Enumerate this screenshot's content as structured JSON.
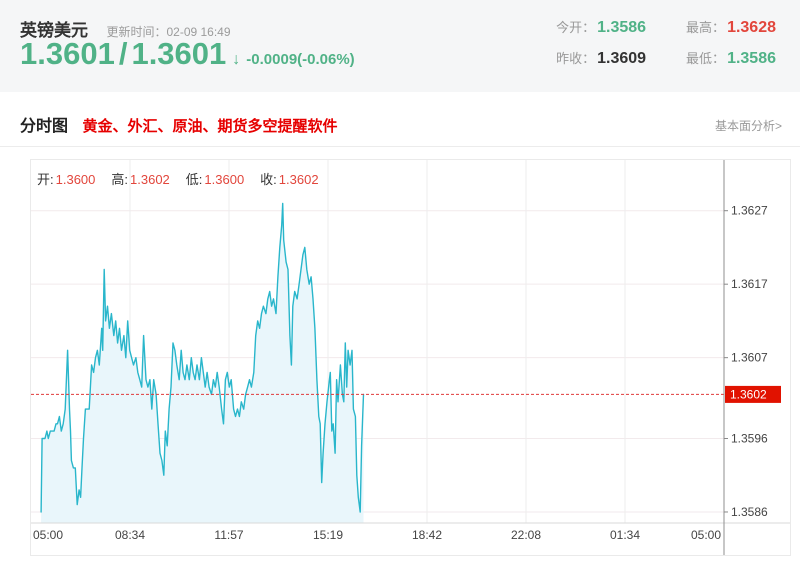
{
  "header": {
    "symbol": "英镑美元",
    "update_label": "更新时间：",
    "update_time": "02-09 16:49",
    "bid": "1.3601",
    "separator": "/",
    "ask": "1.3601",
    "arrow": "↓",
    "change": "-0.0009(-0.06%)",
    "stats": [
      {
        "label": "今开：",
        "value": "1.3586",
        "color": "#50b287"
      },
      {
        "label": "最高：",
        "value": "1.3628",
        "color": "#e2463c"
      },
      {
        "label": "昨收：",
        "value": "1.3609",
        "color": "#333333"
      },
      {
        "label": "最低：",
        "value": "1.3586",
        "color": "#50b287"
      }
    ],
    "colors": {
      "price_green": "#50b287",
      "background": "#f5f6f7"
    }
  },
  "tabbar": {
    "tab": "分时图",
    "promo": "黄金、外汇、原油、期货多空提醒软件",
    "link": "基本面分析>",
    "promo_color": "#e60000"
  },
  "chart": {
    "ohlc": [
      {
        "label": "开:",
        "value": "1.3600"
      },
      {
        "label": "高:",
        "value": "1.3602"
      },
      {
        "label": "低:",
        "value": "1.3600"
      },
      {
        "label": "收:",
        "value": "1.3602"
      }
    ]
  },
  "chart_data": {
    "type": "line",
    "title": "英镑美元 分时图",
    "x_ticks": [
      "05:00",
      "08:34",
      "11:57",
      "15:19",
      "18:42",
      "22:08",
      "01:34",
      "05:00"
    ],
    "x_range_minutes": [
      0,
      1440
    ],
    "y_ticks": [
      "1.3627",
      "1.3617",
      "1.3607",
      "1.3596",
      "1.3586"
    ],
    "y_range": [
      1.35845,
      1.36339
    ],
    "current_price": 1.3602,
    "current_price_label": "1.3602",
    "day_open": 1.3586,
    "day_high": 1.3628,
    "day_low": 1.3586,
    "prev_close": 1.3609,
    "grid": true,
    "line_color": "#29b6cb",
    "fill_color": "#e9f6fb",
    "dotted_line_color": "#e03a3a",
    "badge_color": "#e11200",
    "axis_text_color": "#444444",
    "points": [
      [
        21,
        1.3586
      ],
      [
        23,
        1.3596
      ],
      [
        29,
        1.3596
      ],
      [
        33,
        1.3597
      ],
      [
        36,
        1.3596
      ],
      [
        40,
        1.3597
      ],
      [
        44,
        1.3597
      ],
      [
        48,
        1.3597
      ],
      [
        52,
        1.3598
      ],
      [
        55,
        1.3598
      ],
      [
        59,
        1.3599
      ],
      [
        63,
        1.3597
      ],
      [
        67,
        1.3598
      ],
      [
        71,
        1.36
      ],
      [
        76,
        1.3608
      ],
      [
        80,
        1.36
      ],
      [
        82,
        1.3597
      ],
      [
        84,
        1.3593
      ],
      [
        88,
        1.3592
      ],
      [
        92,
        1.3592
      ],
      [
        96,
        1.3587
      ],
      [
        100,
        1.3589
      ],
      [
        103,
        1.3588
      ],
      [
        106,
        1.3592
      ],
      [
        109,
        1.3596
      ],
      [
        113,
        1.36
      ],
      [
        117,
        1.36
      ],
      [
        121,
        1.36
      ],
      [
        126,
        1.3606
      ],
      [
        130,
        1.3605
      ],
      [
        134,
        1.3607
      ],
      [
        138,
        1.3608
      ],
      [
        142,
        1.3606
      ],
      [
        147,
        1.3611
      ],
      [
        149,
        1.3608
      ],
      [
        152,
        1.3619
      ],
      [
        155,
        1.3612
      ],
      [
        159,
        1.3614
      ],
      [
        163,
        1.3611
      ],
      [
        167,
        1.3613
      ],
      [
        172,
        1.361
      ],
      [
        176,
        1.3612
      ],
      [
        180,
        1.3609
      ],
      [
        184,
        1.3611
      ],
      [
        188,
        1.3608
      ],
      [
        193,
        1.361
      ],
      [
        197,
        1.3607
      ],
      [
        201,
        1.3612
      ],
      [
        205,
        1.3608
      ],
      [
        209,
        1.3607
      ],
      [
        213,
        1.3606
      ],
      [
        218,
        1.3607
      ],
      [
        222,
        1.3605
      ],
      [
        226,
        1.3604
      ],
      [
        230,
        1.3603
      ],
      [
        234,
        1.361
      ],
      [
        239,
        1.3604
      ],
      [
        243,
        1.3603
      ],
      [
        247,
        1.3604
      ],
      [
        251,
        1.36
      ],
      [
        255,
        1.3604
      ],
      [
        260,
        1.3602
      ],
      [
        264,
        1.3598
      ],
      [
        268,
        1.3594
      ],
      [
        272,
        1.3593
      ],
      [
        276,
        1.3591
      ],
      [
        279,
        1.3597
      ],
      [
        283,
        1.3595
      ],
      [
        287,
        1.36
      ],
      [
        291,
        1.3603
      ],
      [
        295,
        1.3609
      ],
      [
        299,
        1.3608
      ],
      [
        303,
        1.3606
      ],
      [
        308,
        1.3604
      ],
      [
        312,
        1.3608
      ],
      [
        316,
        1.3605
      ],
      [
        320,
        1.3604
      ],
      [
        324,
        1.3606
      ],
      [
        329,
        1.3604
      ],
      [
        333,
        1.3607
      ],
      [
        337,
        1.3605
      ],
      [
        341,
        1.3604
      ],
      [
        345,
        1.3606
      ],
      [
        350,
        1.3604
      ],
      [
        354,
        1.3607
      ],
      [
        358,
        1.3605
      ],
      [
        362,
        1.3603
      ],
      [
        366,
        1.3605
      ],
      [
        370,
        1.3603
      ],
      [
        375,
        1.3602
      ],
      [
        379,
        1.3604
      ],
      [
        383,
        1.3603
      ],
      [
        387,
        1.3605
      ],
      [
        391,
        1.3603
      ],
      [
        396,
        1.36
      ],
      [
        400,
        1.3598
      ],
      [
        404,
        1.3604
      ],
      [
        408,
        1.3605
      ],
      [
        412,
        1.3603
      ],
      [
        416,
        1.3604
      ],
      [
        421,
        1.36
      ],
      [
        425,
        1.3599
      ],
      [
        429,
        1.36
      ],
      [
        433,
        1.3599
      ],
      [
        437,
        1.3601
      ],
      [
        442,
        1.36
      ],
      [
        446,
        1.3602
      ],
      [
        450,
        1.3603
      ],
      [
        454,
        1.3604
      ],
      [
        458,
        1.3603
      ],
      [
        463,
        1.3605
      ],
      [
        467,
        1.361
      ],
      [
        471,
        1.3612
      ],
      [
        475,
        1.3611
      ],
      [
        479,
        1.3613
      ],
      [
        483,
        1.3614
      ],
      [
        488,
        1.3613
      ],
      [
        492,
        1.3615
      ],
      [
        496,
        1.3616
      ],
      [
        500,
        1.3614
      ],
      [
        504,
        1.3615
      ],
      [
        509,
        1.3613
      ],
      [
        513,
        1.3618
      ],
      [
        517,
        1.3622
      ],
      [
        521,
        1.3625
      ],
      [
        523,
        1.3628
      ],
      [
        525,
        1.3623
      ],
      [
        530,
        1.362
      ],
      [
        534,
        1.3619
      ],
      [
        538,
        1.361
      ],
      [
        541,
        1.3606
      ],
      [
        544,
        1.3614
      ],
      [
        548,
        1.3616
      ],
      [
        553,
        1.3615
      ],
      [
        557,
        1.3617
      ],
      [
        561,
        1.3619
      ],
      [
        565,
        1.3621
      ],
      [
        569,
        1.3622
      ],
      [
        573,
        1.3619
      ],
      [
        578,
        1.3617
      ],
      [
        582,
        1.3618
      ],
      [
        586,
        1.3615
      ],
      [
        590,
        1.3611
      ],
      [
        594,
        1.3604
      ],
      [
        598,
        1.3599
      ],
      [
        601,
        1.3598
      ],
      [
        604,
        1.359
      ],
      [
        607,
        1.3594
      ],
      [
        611,
        1.3598
      ],
      [
        615,
        1.3601
      ],
      [
        620,
        1.3604
      ],
      [
        622,
        1.3605
      ],
      [
        625,
        1.3597
      ],
      [
        628,
        1.3598
      ],
      [
        632,
        1.3594
      ],
      [
        635,
        1.3604
      ],
      [
        638,
        1.3601
      ],
      [
        643,
        1.3606
      ],
      [
        647,
        1.3602
      ],
      [
        650,
        1.3601
      ],
      [
        653,
        1.3609
      ],
      [
        656,
        1.3603
      ],
      [
        659,
        1.3608
      ],
      [
        663,
        1.3606
      ],
      [
        667,
        1.3608
      ],
      [
        670,
        1.36
      ],
      [
        674,
        1.3599
      ],
      [
        677,
        1.3591
      ],
      [
        680,
        1.3588
      ],
      [
        684,
        1.3586
      ],
      [
        687,
        1.3595
      ],
      [
        691,
        1.3602
      ]
    ]
  }
}
